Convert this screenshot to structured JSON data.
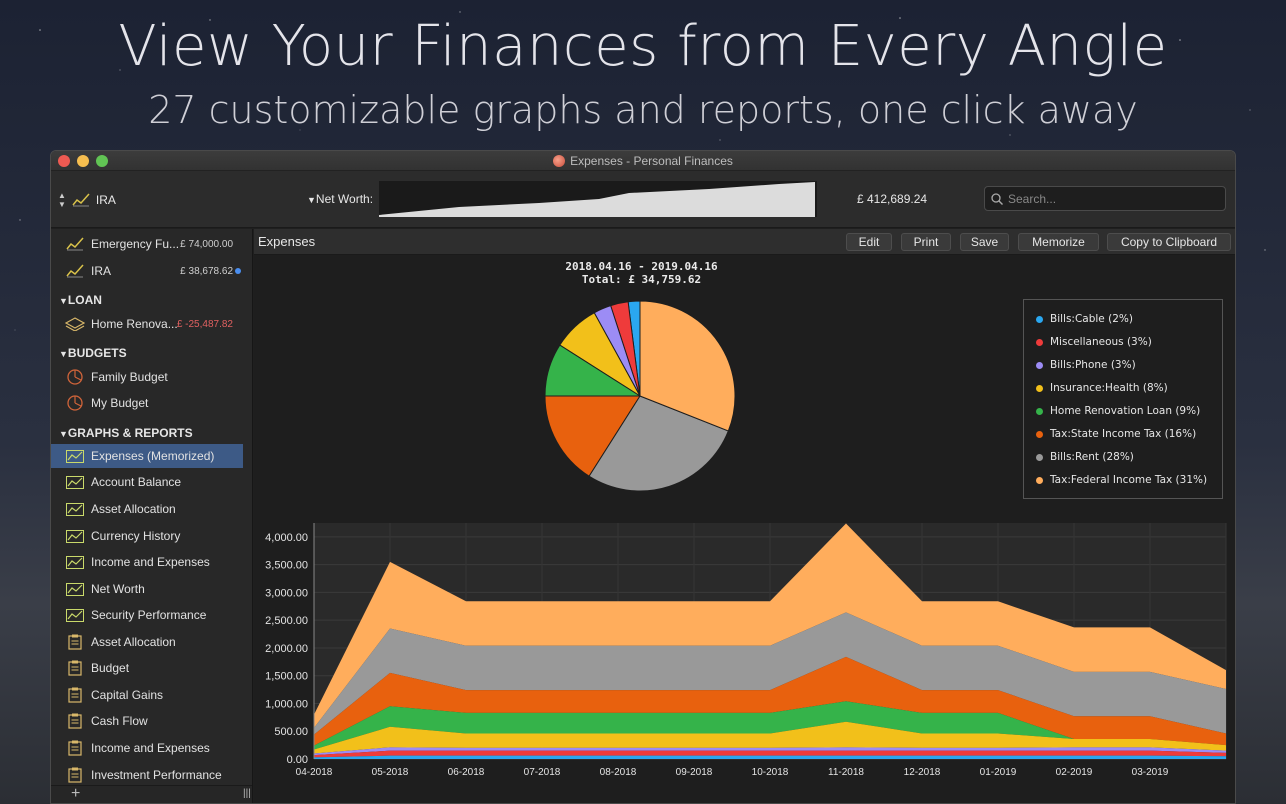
{
  "promo": {
    "headline": "View Your Finances from Every Angle",
    "subheadline": "27 customizable graphs and reports, one click away"
  },
  "window": {
    "title": "Expenses - Personal Finances"
  },
  "toolbar": {
    "account": "IRA",
    "net_worth_label": "Net Worth:",
    "net_worth_value": "£ 412,689.24",
    "search_placeholder": "Search..."
  },
  "sidebar": {
    "accounts": [
      {
        "label": "Emergency Fu...",
        "amount": "£ 74,000.00"
      },
      {
        "label": "IRA",
        "amount": "£ 38,678.62"
      }
    ],
    "loan_header": "LOAN",
    "loans": [
      {
        "label": "Home Renova...",
        "amount": "£ -25,487.82"
      }
    ],
    "budgets_header": "BUDGETS",
    "budgets": [
      {
        "label": "Family Budget"
      },
      {
        "label": "My Budget"
      }
    ],
    "reports_header": "GRAPHS & REPORTS",
    "graphs": [
      {
        "label": "Expenses (Memorized)"
      },
      {
        "label": "Account Balance"
      },
      {
        "label": "Asset Allocation"
      },
      {
        "label": "Currency History"
      },
      {
        "label": "Income and Expenses"
      },
      {
        "label": "Net Worth"
      },
      {
        "label": "Security Performance"
      }
    ],
    "reports": [
      {
        "label": "Asset Allocation"
      },
      {
        "label": "Budget"
      },
      {
        "label": "Capital Gains"
      },
      {
        "label": "Cash Flow"
      },
      {
        "label": "Income and Expenses"
      },
      {
        "label": "Investment Performance"
      }
    ]
  },
  "content": {
    "title": "Expenses",
    "buttons": {
      "edit": "Edit",
      "print": "Print",
      "save": "Save",
      "memorize": "Memorize",
      "copy": "Copy to Clipboard"
    }
  },
  "colors": {
    "cable": "#2aa7f0",
    "misc": "#ef3b3b",
    "phone": "#9c8cf5",
    "insurance": "#f2c01a",
    "home_loan": "#35b34a",
    "state_tax": "#e8610e",
    "rent": "#999999",
    "federal_tax": "#ffad5c"
  },
  "chart_data": [
    {
      "type": "pie",
      "title": "2018.04.16 - 2019.04.16",
      "subtitle": "Total: £ 34,759.62",
      "legend_position": "right",
      "slices": [
        {
          "name": "Bills:Cable (2%)",
          "value": 2,
          "color": "#2aa7f0"
        },
        {
          "name": "Miscellaneous (3%)",
          "value": 3,
          "color": "#ef3b3b"
        },
        {
          "name": "Bills:Phone (3%)",
          "value": 3,
          "color": "#9c8cf5"
        },
        {
          "name": "Insurance:Health (8%)",
          "value": 8,
          "color": "#f2c01a"
        },
        {
          "name": "Home Renovation Loan (9%)",
          "value": 9,
          "color": "#35b34a"
        },
        {
          "name": "Tax:State Income Tax (16%)",
          "value": 16,
          "color": "#e8610e"
        },
        {
          "name": "Bills:Rent (28%)",
          "value": 28,
          "color": "#999999"
        },
        {
          "name": "Tax:Federal Income Tax (31%)",
          "value": 31,
          "color": "#ffad5c"
        }
      ]
    },
    {
      "type": "area",
      "stacked": true,
      "grid": true,
      "legend": false,
      "ylim": [
        0,
        4250
      ],
      "yticks": [
        0,
        500,
        1000,
        1500,
        2000,
        2500,
        3000,
        3500,
        4000
      ],
      "ytick_labels": [
        "0.00",
        "500.00",
        "1,000.00",
        "1,500.00",
        "2,000.00",
        "2,500.00",
        "3,000.00",
        "3,500.00",
        "4,000.00"
      ],
      "categories": [
        "04-2018",
        "05-2018",
        "06-2018",
        "07-2018",
        "08-2018",
        "09-2018",
        "10-2018",
        "11-2018",
        "12-2018",
        "01-2019",
        "02-2019",
        "03-2019",
        ""
      ],
      "series": [
        {
          "color": "#2aa7f0",
          "values": [
            30,
            60,
            60,
            60,
            60,
            60,
            60,
            60,
            60,
            60,
            60,
            60,
            50
          ]
        },
        {
          "color": "#ef3b3b",
          "values": [
            40,
            90,
            90,
            90,
            90,
            90,
            90,
            90,
            90,
            90,
            90,
            90,
            60
          ]
        },
        {
          "color": "#9c8cf5",
          "values": [
            30,
            60,
            50,
            50,
            50,
            50,
            50,
            60,
            50,
            50,
            60,
            60,
            40
          ]
        },
        {
          "color": "#f2c01a",
          "values": [
            70,
            370,
            260,
            260,
            260,
            260,
            260,
            460,
            260,
            260,
            150,
            150,
            100
          ]
        },
        {
          "color": "#35b34a",
          "values": [
            70,
            370,
            370,
            370,
            370,
            370,
            370,
            370,
            370,
            370,
            0,
            0,
            0
          ]
        },
        {
          "color": "#e8610e",
          "values": [
            200,
            600,
            410,
            410,
            410,
            410,
            410,
            800,
            410,
            410,
            410,
            410,
            210
          ]
        },
        {
          "color": "#999999",
          "values": [
            120,
            800,
            800,
            800,
            800,
            800,
            800,
            800,
            800,
            800,
            800,
            800,
            800
          ]
        },
        {
          "color": "#ffad5c",
          "values": [
            240,
            1200,
            800,
            800,
            800,
            800,
            800,
            1600,
            800,
            800,
            800,
            800,
            340
          ]
        }
      ]
    }
  ]
}
